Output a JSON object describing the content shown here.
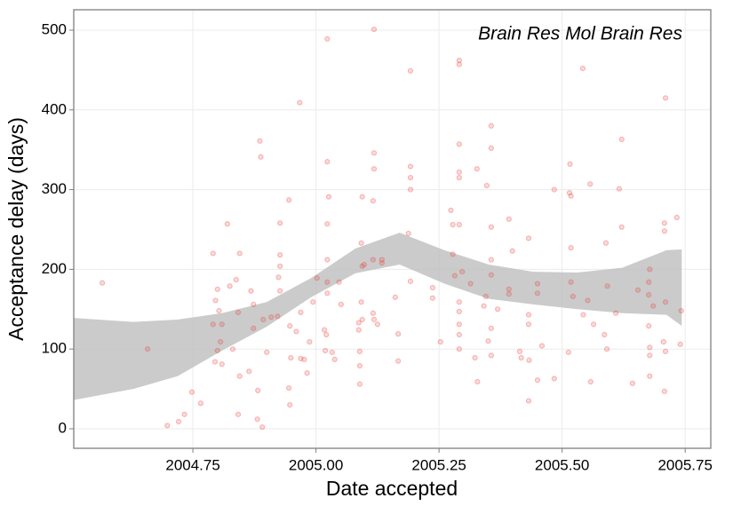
{
  "chart_data": {
    "type": "scatter",
    "annotation": "Brain Res Mol Brain Res",
    "x_label": "Date accepted",
    "y_label": "Acceptance delay (days)",
    "xlim": [
      2004.508,
      2005.802
    ],
    "ylim": [
      -24.5,
      525.6
    ],
    "xticks": [
      {
        "value": 2004.75,
        "label": "2004.75"
      },
      {
        "value": 2005,
        "label": "2005.00"
      },
      {
        "value": 2005.25,
        "label": "2005.25"
      },
      {
        "value": 2005.5,
        "label": "2005.50"
      },
      {
        "value": 2005.75,
        "label": "2005.75"
      }
    ],
    "yticks": [
      0,
      100,
      200,
      300,
      400,
      500
    ],
    "grid": true,
    "band": {
      "color": "#bdbdbd",
      "x": [
        2004.508,
        2004.629,
        2004.719,
        2004.809,
        2004.9,
        2004.99,
        2005.08,
        2005.17,
        2005.261,
        2005.351,
        2005.441,
        2005.531,
        2005.622,
        2005.712,
        2005.743
      ],
      "lower": [
        36,
        50,
        66,
        98,
        128,
        165,
        195,
        206,
        182,
        163,
        156,
        150,
        145,
        143,
        129
      ],
      "upper": [
        139,
        134,
        137,
        145,
        159,
        189,
        226,
        246,
        224,
        206,
        197,
        196,
        202,
        224,
        225
      ]
    },
    "series": [
      {
        "color": "#e8413c",
        "x": [
          2004.566,
          2004.658,
          2004.698,
          2004.721,
          2004.733,
          2004.748,
          2004.766,
          2004.791,
          2004.8,
          2004.796,
          2004.803,
          2004.809,
          2004.791,
          2004.806,
          2004.8,
          2004.795,
          2004.809,
          2004.82,
          2004.825,
          2004.831,
          2004.842,
          2004.838,
          2004.845,
          2004.845,
          2004.842,
          2004.864,
          2004.868,
          2004.873,
          2004.873,
          2004.881,
          2004.886,
          2004.888,
          2004.882,
          2004.891,
          2004.893,
          2004.9,
          2004.909,
          2004.922,
          2004.927,
          2004.927,
          2004.927,
          2004.924,
          2004.927,
          2004.945,
          2004.947,
          2004.949,
          2004.945,
          2004.947,
          2004.96,
          2004.967,
          2004.969,
          2004.969,
          2004.976,
          2004.982,
          2004.987,
          2004.994,
          2005.002,
          2005.017,
          2005.021,
          2005.019,
          2005.023,
          2005.023,
          2005.026,
          2005.023,
          2005.023,
          2005.023,
          2005.023,
          2005.033,
          2005.038,
          2005.047,
          2005.051,
          2005.087,
          2005.087,
          2005.089,
          2005.089,
          2005.089,
          2005.092,
          2005.094,
          2005.094,
          2005.098,
          2005.094,
          2005.092,
          2005.118,
          2005.118,
          2005.118,
          2005.116,
          2005.116,
          2005.116,
          2005.118,
          2005.125,
          2005.134,
          2005.134,
          2005.161,
          2005.167,
          2005.167,
          2005.188,
          2005.192,
          2005.192,
          2005.192,
          2005.192,
          2005.192,
          2005.237,
          2005.237,
          2005.253,
          2005.274,
          2005.278,
          2005.278,
          2005.282,
          2005.291,
          2005.291,
          2005.291,
          2005.291,
          2005.291,
          2005.291,
          2005.291,
          2005.291,
          2005.291,
          2005.291,
          2005.291,
          2005.297,
          2005.314,
          2005.323,
          2005.327,
          2005.328,
          2005.341,
          2005.345,
          2005.347,
          2005.35,
          2005.356,
          2005.356,
          2005.356,
          2005.356,
          2005.356,
          2005.356,
          2005.356,
          2005.369,
          2005.392,
          2005.392,
          2005.392,
          2005.399,
          2005.414,
          2005.417,
          2005.432,
          2005.432,
          2005.432,
          2005.433,
          2005.432,
          2005.45,
          2005.45,
          2005.45,
          2005.459,
          2005.484,
          2005.484,
          2005.513,
          2005.515,
          2005.516,
          2005.518,
          2005.518,
          2005.518,
          2005.522,
          2005.542,
          2005.543,
          2005.552,
          2005.557,
          2005.558,
          2005.564,
          2005.586,
          2005.589,
          2005.591,
          2005.592,
          2005.609,
          2005.616,
          2005.621,
          2005.621,
          2005.643,
          2005.654,
          2005.676,
          2005.676,
          2005.676,
          2005.678,
          2005.678,
          2005.678,
          2005.678,
          2005.685,
          2005.708,
          2005.708,
          2005.71,
          2005.71,
          2005.71,
          2005.708,
          2005.733,
          2005.742,
          2005.74,
          2005.706
        ],
        "values": [
          183,
          100,
          4,
          9,
          18,
          46,
          32,
          220,
          175,
          161,
          148,
          131,
          131,
          109,
          98,
          84,
          81,
          257,
          179,
          100,
          146,
          187,
          220,
          66,
          18,
          72,
          173,
          156,
          126,
          12,
          361,
          341,
          48,
          2,
          137,
          96,
          140,
          141,
          258,
          218,
          204,
          190,
          173,
          287,
          129,
          89,
          51,
          30,
          122,
          409,
          146,
          88,
          87,
          70,
          109,
          159,
          189,
          124,
          118,
          98,
          489,
          335,
          291,
          257,
          212,
          184,
          170,
          96,
          87,
          184,
          156,
          133,
          124,
          97,
          79,
          56,
          233,
          291,
          204,
          206,
          137,
          159,
          501,
          346,
          326,
          286,
          212,
          145,
          137,
          131,
          212,
          208,
          165,
          119,
          85,
          245,
          449,
          329,
          315,
          300,
          185,
          177,
          164,
          109,
          274,
          256,
          219,
          192,
          462,
          457,
          357,
          322,
          315,
          256,
          159,
          147,
          131,
          118,
          100,
          197,
          182,
          89,
          326,
          59,
          154,
          166,
          305,
          110,
          380,
          352,
          253,
          212,
          193,
          126,
          92,
          150,
          263,
          175,
          169,
          223,
          97,
          89,
          239,
          143,
          131,
          86,
          35,
          182,
          170,
          61,
          104,
          63,
          300,
          96,
          296,
          332,
          292,
          227,
          184,
          166,
          452,
          143,
          161,
          307,
          59,
          131,
          118,
          233,
          100,
          179,
          145,
          301,
          363,
          253,
          57,
          174,
          184,
          168,
          129,
          102,
          92,
          200,
          66,
          154,
          258,
          248,
          415,
          159,
          97,
          47,
          265,
          148,
          106,
          109
        ]
      }
    ]
  }
}
